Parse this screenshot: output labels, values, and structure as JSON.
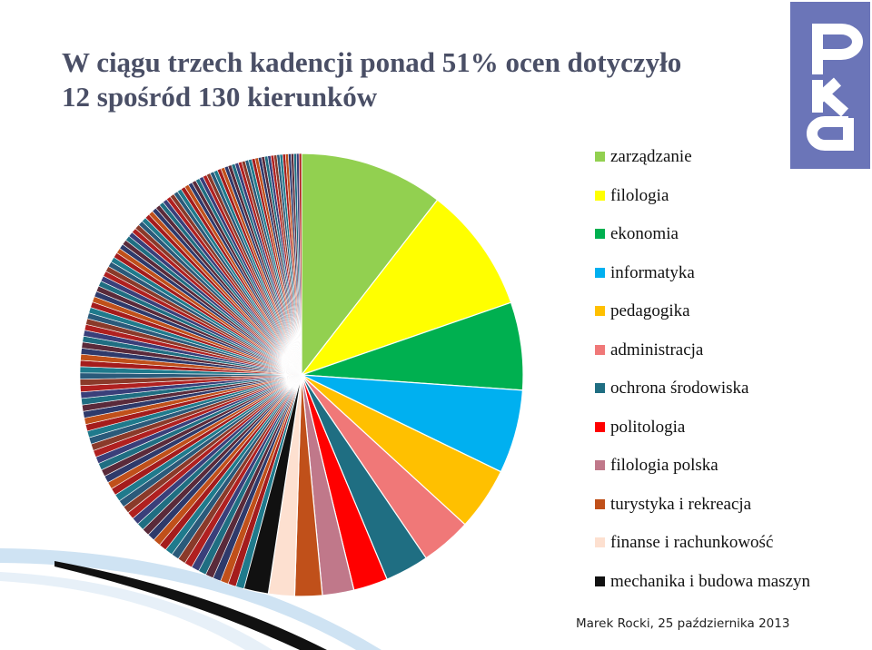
{
  "slide": {
    "title": "W ciągu trzech kadencji ponad 51% ocen dotyczyło 12 spośród 130 kierunków",
    "footer": "Marek Rocki, 25 października 2013"
  },
  "logo": {
    "icon": "pka-logo-icon",
    "color": "#6b75b8"
  },
  "chart_data": {
    "type": "pie",
    "title": "",
    "start_angle_deg": 0,
    "direction": "clockwise",
    "legend_position": "right",
    "slices": [
      {
        "label": "zarządzanie",
        "value": 10.5,
        "color": "#92d050"
      },
      {
        "label": "filologia",
        "value": 9.2,
        "color": "#ffff00"
      },
      {
        "label": "ekonomia",
        "value": 6.4,
        "color": "#00b050"
      },
      {
        "label": "informatyka",
        "value": 6.1,
        "color": "#00b0f0"
      },
      {
        "label": "pedagogika",
        "value": 4.6,
        "color": "#ffc000"
      },
      {
        "label": "administracja",
        "value": 3.7,
        "color": "#f07878"
      },
      {
        "label": "ochrona środowiska",
        "value": 3.2,
        "color": "#1f6e82"
      },
      {
        "label": "politologia",
        "value": 2.5,
        "color": "#ff0000"
      },
      {
        "label": "filologia polska",
        "value": 2.3,
        "color": "#c0788a"
      },
      {
        "label": "turystyka i rekreacja",
        "value": 2.0,
        "color": "#c0501a"
      },
      {
        "label": "finanse i rachunkowość",
        "value": 1.9,
        "color": "#fde0d0"
      },
      {
        "label": "mechanika i budowa maszyn",
        "value": 1.8,
        "color": "#111111"
      }
    ],
    "other_slices": {
      "count": 118,
      "total": 45.8,
      "colors": [
        "#1f7a8c",
        "#a51c1c",
        "#c0501a",
        "#2e3a6b",
        "#5a2a3a",
        "#1f6e82",
        "#3a3f7a",
        "#b02020",
        "#8a3a2a",
        "#2a5a7a"
      ]
    }
  }
}
